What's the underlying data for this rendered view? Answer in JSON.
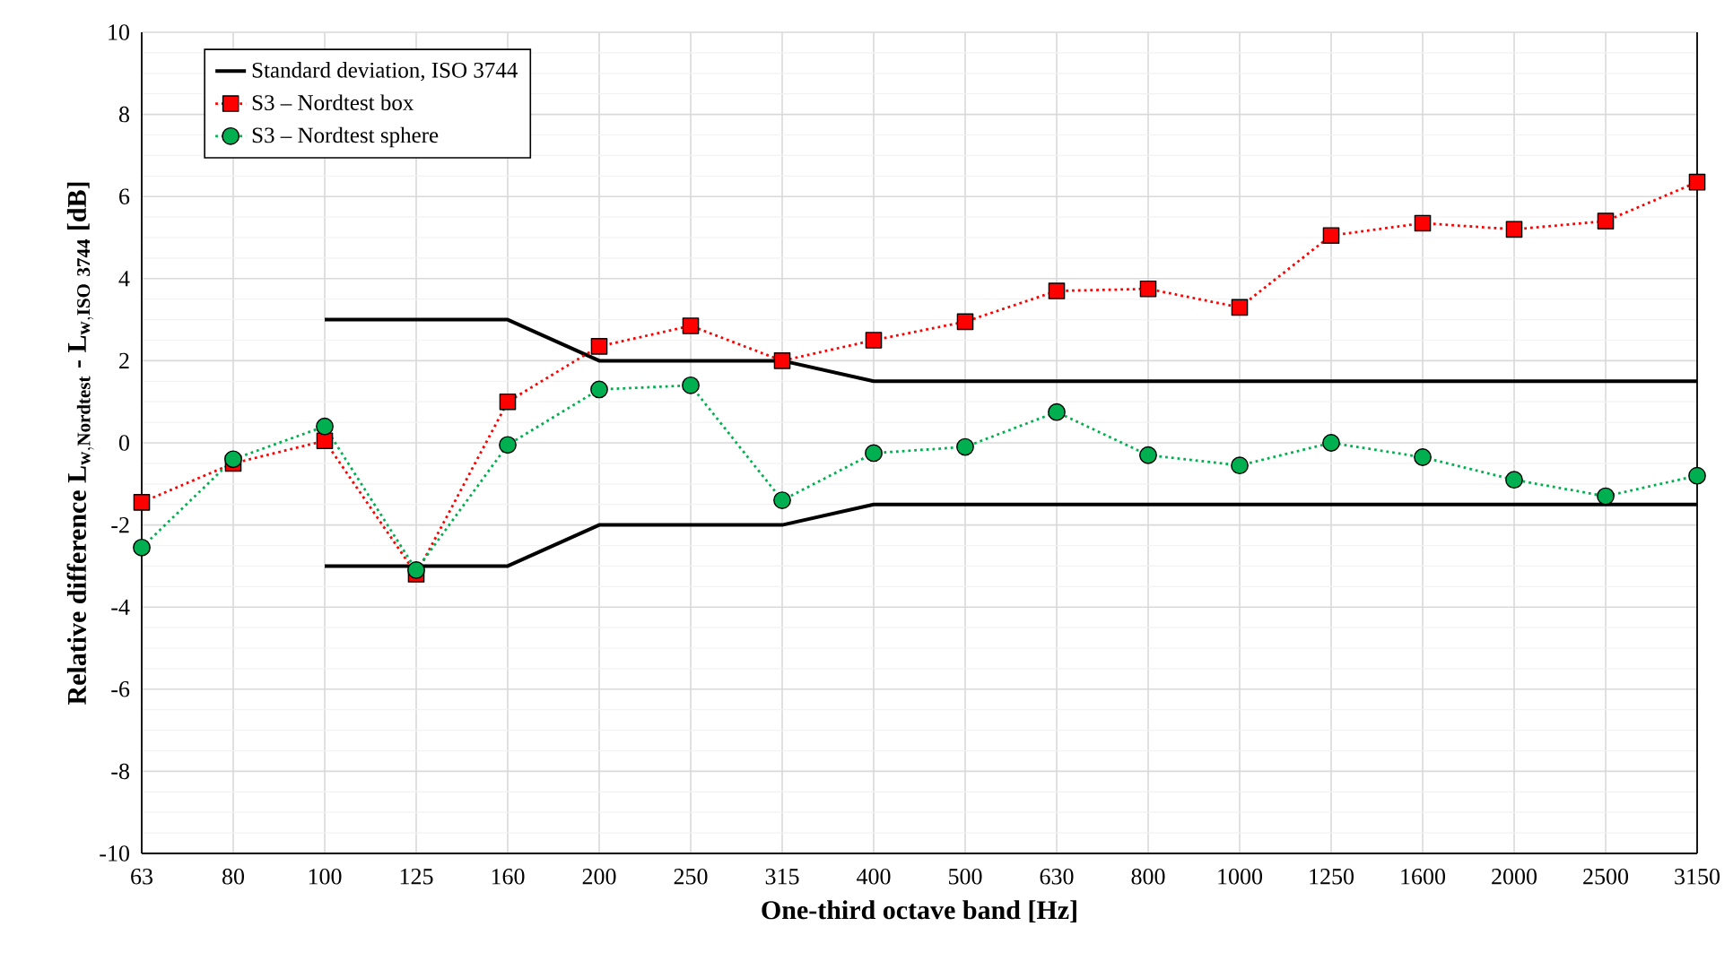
{
  "chart_data": {
    "type": "line",
    "xlabel": "One-third octave band [Hz]",
    "ylabel": "\\textbf{Relative difference }\\mathbf{L_{w,Nordtest}}\\textbf{ - }\\mathbf{L_{w,ISO\\ 3744}}\\textbf{ [dB]}",
    "categories": [
      "63",
      "80",
      "100",
      "125",
      "160",
      "200",
      "250",
      "315",
      "400",
      "500",
      "630",
      "800",
      "1000",
      "1250",
      "1600",
      "2000",
      "2500",
      "3150"
    ],
    "ylim": [
      -10,
      10
    ],
    "yticks": [
      -10,
      -8,
      -6,
      -4,
      -2,
      0,
      2,
      4,
      6,
      8,
      10
    ],
    "grid": true,
    "legend": "top left",
    "series": [
      {
        "name": "Standard deviation, ISO 3744",
        "color": "#000000",
        "marker": "none",
        "line_style": "solid",
        "values": [
          null,
          null,
          3,
          3,
          3,
          2,
          2,
          2,
          1.5,
          1.5,
          1.5,
          1.5,
          1.5,
          1.5,
          1.5,
          1.5,
          1.5,
          1.5
        ]
      },
      {
        "color": "#000000",
        "marker": "none",
        "line_style": "solid",
        "values": [
          null,
          null,
          -3,
          -3,
          -3,
          -2,
          -2,
          -2,
          -1.5,
          -1.5,
          -1.5,
          -1.5,
          -1.5,
          -1.5,
          -1.5,
          -1.5,
          -1.5,
          -1.5
        ]
      },
      {
        "name": "S3 – Nordtest box",
        "color": "#ff0000",
        "marker": "square",
        "line_style": "dotted",
        "values": [
          -1.45,
          -0.5,
          0.05,
          -3.2,
          1.0,
          2.35,
          2.85,
          2.0,
          2.5,
          2.95,
          3.7,
          3.75,
          3.3,
          5.05,
          5.35,
          5.2,
          5.4,
          6.35
        ]
      },
      {
        "name": "S3 – Nordtest sphere",
        "color": "#00b050",
        "marker": "circle",
        "line_style": "dotted",
        "values": [
          -2.55,
          -0.4,
          0.4,
          -3.1,
          -0.05,
          1.3,
          1.4,
          -1.4,
          -0.25,
          -0.1,
          0.75,
          -0.3,
          -0.55,
          0.0,
          -0.35,
          -0.9,
          -1.3,
          -0.8
        ]
      }
    ]
  }
}
